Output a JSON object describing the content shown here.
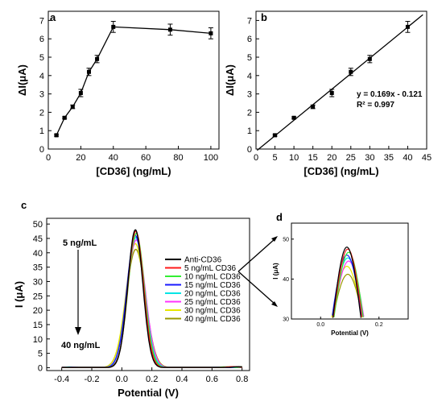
{
  "panels": {
    "a": {
      "label": "a"
    },
    "b": {
      "label": "b"
    },
    "c": {
      "label": "c",
      "annotation_top": "5 ng/mL",
      "annotation_bottom": "40 ng/mL"
    },
    "d": {
      "label": "d"
    }
  },
  "chart_data": [
    {
      "id": "a",
      "type": "line",
      "title": "",
      "xlabel": "[CD36] (ng/mL)",
      "ylabel": "ΔI(μA)",
      "xlim": [
        0,
        105
      ],
      "ylim": [
        0,
        7.5
      ],
      "xticks": [
        0,
        20,
        40,
        60,
        80,
        100
      ],
      "yticks": [
        0,
        1,
        2,
        3,
        4,
        5,
        6,
        7
      ],
      "series": [
        {
          "x": [
            5,
            10,
            15,
            20,
            25,
            30,
            40,
            75,
            100
          ],
          "y": [
            0.75,
            1.7,
            2.3,
            3.05,
            4.2,
            4.9,
            6.65,
            6.5,
            6.3
          ],
          "err": [
            0.05,
            0.05,
            0.1,
            0.2,
            0.2,
            0.2,
            0.3,
            0.3,
            0.3
          ]
        }
      ]
    },
    {
      "id": "b",
      "type": "scatter",
      "title": "",
      "xlabel": "[CD36] (ng/mL)",
      "ylabel": "ΔI(μA)",
      "xlim": [
        0,
        45
      ],
      "ylim": [
        0,
        7.5
      ],
      "xticks": [
        0,
        5,
        10,
        15,
        20,
        25,
        30,
        35,
        40,
        45
      ],
      "yticks": [
        0,
        1,
        2,
        3,
        4,
        5,
        6,
        7
      ],
      "equation": "y = 0.169x - 0.121",
      "r2": "R² = 0.997",
      "fit": {
        "slope": 0.169,
        "intercept": -0.121,
        "xrange": [
          0.3,
          44
        ]
      },
      "series": [
        {
          "x": [
            5,
            10,
            15,
            20,
            25,
            30,
            40
          ],
          "y": [
            0.75,
            1.7,
            2.3,
            3.05,
            4.2,
            4.9,
            6.65
          ],
          "err": [
            0.05,
            0.05,
            0.1,
            0.2,
            0.2,
            0.2,
            0.3
          ]
        }
      ]
    },
    {
      "id": "c",
      "type": "line",
      "title": "",
      "xlabel": "Potential (V)",
      "ylabel": "I (μA)",
      "xlim": [
        -0.5,
        0.85
      ],
      "ylim": [
        -1,
        52
      ],
      "xticks": [
        -0.4,
        -0.2,
        0.0,
        0.2,
        0.4,
        0.6,
        0.8
      ],
      "xticklabels": [
        "-0.4",
        "-0.2",
        "0.0",
        "0.2",
        "0.4",
        "0.6",
        "0.8"
      ],
      "yticks": [
        0,
        5,
        10,
        15,
        20,
        25,
        30,
        35,
        40,
        45,
        50
      ],
      "legend_position": "right",
      "series": [
        {
          "name": "Anti-CD36",
          "peak": 48.0,
          "color": "#000000"
        },
        {
          "name": "5 ng/mL CD36",
          "peak": 47.5,
          "color": "#ff1a1a"
        },
        {
          "name": "10 ng/mL CD36",
          "peak": 46.7,
          "color": "#33ee33"
        },
        {
          "name": "15 ng/mL CD36",
          "peak": 46.0,
          "color": "#1a1aff"
        },
        {
          "name": "20 ng/mL CD36",
          "peak": 45.3,
          "color": "#00e5e5"
        },
        {
          "name": "25 ng/mL CD36",
          "peak": 44.5,
          "color": "#ff33ff"
        },
        {
          "name": "30 ng/mL CD36",
          "peak": 43.2,
          "color": "#e6e600"
        },
        {
          "name": "40 ng/mL CD36",
          "peak": 41.2,
          "color": "#999900"
        }
      ]
    },
    {
      "id": "d",
      "type": "line",
      "title": "",
      "xlabel": "Potential (V)",
      "ylabel": "I (μA)",
      "xlim": [
        -0.1,
        0.3
      ],
      "ylim": [
        30,
        54
      ],
      "xticks": [
        0.0,
        0.2
      ],
      "xticklabels": [
        "0.0",
        "0.2"
      ],
      "yticks": [
        30,
        40,
        50
      ],
      "series_ref": "c"
    }
  ]
}
